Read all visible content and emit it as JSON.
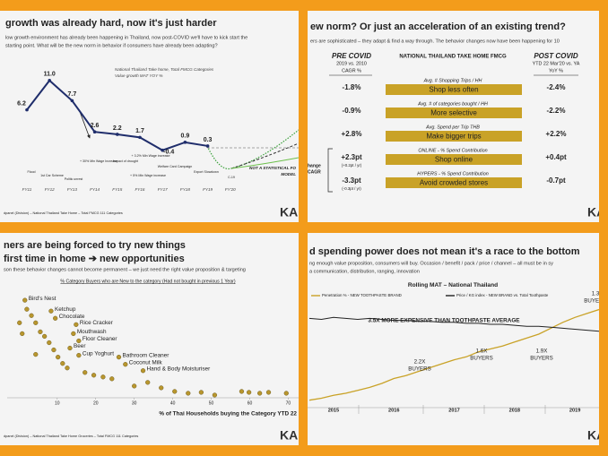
{
  "slides": [
    {
      "title": "growth was already hard, now it's just harder",
      "subtitle": [
        "low growth environment has already been happening in Thailand, now post-COVID we'll have to kick start the",
        "starting point. What will be the new norm in behavior if consumers have already been adapting?"
      ],
      "note": [
        "National Thailand Take home, Total FMCG Categories",
        "Value growth MAT YOY %"
      ],
      "annotations": [
        "Flood",
        "1st Car Scheme",
        "Politic unrest",
        "+ 30% Min Wage Increase",
        "Impact of drought",
        "+ 3.2% Min Wage increase",
        "Welfare Card Campaign",
        "+ 5% Min Wage increase",
        "Export Slowdown",
        "C-19"
      ],
      "forecast_note": [
        "NOT A STATISTICAL FO",
        "MODEL"
      ],
      "footer": "dpanel (Division) – National Thailand Take Home – Total FMCG 111 Categories",
      "logo": "KA"
    },
    {
      "title": "ew norm? Or just an acceleration of an existing trend?",
      "subtitle": "ers are sophisticated – they adapt & find a way through. The behavior changes now have been happening for 10",
      "table": {
        "headers": [
          [
            "PRE COVID",
            "2019 vs. 2010",
            "CAGR %"
          ],
          [
            "NATIONAL THAILAND TAKE HOME FMCG"
          ],
          [
            "POST COVID",
            "YTD 22 Mar'20 vs. YA",
            "YoY %"
          ]
        ],
        "rows": [
          {
            "pre": "-1.8%",
            "metric": "Avg. # Shopping Trips / HH",
            "action": "Shop less often",
            "post": "-2.4%"
          },
          {
            "pre": "-0.9%",
            "metric": "Avg. # of categories bought / HH",
            "action": "More selective",
            "post": "-2.2%"
          },
          {
            "pre": "+2.8%",
            "metric": "Avg. Spend per Trip THB",
            "action": "Make bigger trips",
            "post": "+2.2%"
          },
          {
            "pre": "+2.3pt",
            "pre_sub": "(+0.2pt / yr)",
            "metric": "ONLINE - % Spend Contribution",
            "action": "Shop online",
            "post": "+0.4pt"
          },
          {
            "pre": "-3.3pt",
            "pre_sub": "(-0.3pt / yr)",
            "metric": "HYPERS - % Spend Contribution",
            "action": "Avoid crowded stores",
            "post": "-0.7pt"
          }
        ]
      },
      "side_label": [
        "hange",
        "CAGR"
      ],
      "logo": "KA"
    },
    {
      "title": [
        "ners are being forced to try new things",
        "first time in home ➔ new opportunities"
      ],
      "subtitle": "son these behavior changes cannot become permanent – we just need the right value proposition & targeting",
      "footer": "dpanel (Division) – National Thailand Take Home Groceries – Total FMCG 111 Categories",
      "logo": "KA"
    },
    {
      "title": "d spending power does not mean it's a race to the bottom",
      "subtitle": [
        "ng enough value proposition, consumers will buy. Occasion / benefit / pack / price / channel – all must be in sy",
        "a communication, distribution, ranging, innovation"
      ],
      "logo": "KA"
    }
  ],
  "chart_data": [
    {
      "type": "line",
      "categories": [
        "FY11",
        "FY12",
        "FY13",
        "FY14",
        "FY15",
        "FY16",
        "FY17",
        "FY18",
        "FY19",
        "FY'20"
      ],
      "values": [
        6.2,
        11.0,
        7.7,
        2.6,
        2.2,
        1.7,
        -0.4,
        0.9,
        0.3,
        null
      ],
      "value_labels": [
        "6.2",
        "11.0",
        "7.7",
        "2.6",
        "2.2",
        "1.7",
        "-0.4",
        "0.9",
        "0.3",
        null
      ],
      "color": "#1f2d6b",
      "ylim": [
        -6,
        12
      ]
    },
    {
      "type": "scatter",
      "caption": "% Category Buyers who are New to the category (Had not bought in previous 1 Year)",
      "x_label": "% of Thai Households buying the Category YTD 22",
      "x": [
        1.6,
        8.4,
        9.5,
        14.9,
        14.2,
        15.6,
        13.3,
        15.6,
        26,
        27.7,
        32.3,
        2.1,
        3.3,
        4.4,
        5.6,
        6.7,
        7.9,
        9.1,
        10.2,
        11.4,
        12.6,
        17.2,
        19.5,
        21.9,
        24.2,
        30,
        33.5,
        37,
        40.5,
        44,
        47.4,
        50.9,
        57.9,
        59.8,
        62.6,
        64.9,
        69.5,
        0.2,
        0.9,
        4.4
      ],
      "values": [
        52.5,
        46.5,
        42.5,
        39,
        34,
        30,
        26,
        22,
        21,
        17,
        13.5,
        47.5,
        44,
        40,
        35,
        32.5,
        29,
        25,
        21,
        17.5,
        15,
        12.5,
        11,
        10,
        9,
        5,
        7,
        4,
        2,
        1,
        1.5,
        0,
        2,
        1.5,
        1,
        1.5,
        1,
        40,
        34,
        22.5
      ],
      "labels": [
        "Bird's Nest",
        "Ketchup",
        "Chocolate",
        "Rice Cracker",
        "Mouthwash",
        "Floor Cleaner",
        "Beer",
        "Cup Yoghurt",
        "Bathroom Cleaner",
        "Coconut Milk",
        "Hand & Body Moisturiser",
        null,
        null,
        null,
        null,
        null,
        null,
        null,
        null,
        null,
        null,
        null,
        null,
        null,
        null,
        null,
        null,
        null,
        null,
        null,
        null,
        null,
        null,
        null,
        null,
        null,
        null,
        null,
        null,
        null
      ],
      "color": "#b8962e",
      "xlim": [
        -3,
        72
      ],
      "ylim": [
        -1.5,
        60
      ],
      "xticks": [
        10,
        20,
        30,
        40,
        50,
        60,
        70
      ]
    },
    {
      "type": "line",
      "title": "Rolling MAT – National Thailand",
      "categories": [
        null,
        null,
        "2015",
        null,
        null,
        null,
        null,
        "2016",
        null,
        null,
        null,
        null,
        "2017",
        null,
        null,
        null,
        null,
        "2018",
        null,
        null,
        null,
        null,
        "2019",
        null,
        null
      ],
      "series": [
        {
          "name": "Penetration % - NEW TOOTHPASTE BRAND",
          "color": "#c9a227",
          "values": [
            3,
            5,
            8,
            10,
            13,
            16,
            20,
            25,
            28,
            32,
            36,
            40,
            44,
            47,
            52,
            55,
            58,
            62,
            66,
            70,
            76,
            82,
            87,
            91,
            95
          ]
        },
        {
          "name": "Price / KG index - NEW BRAND vs. Total Toothpaste",
          "color": "#222222",
          "axis": "y2",
          "values": [
            86,
            85,
            87,
            86,
            85,
            86,
            85,
            84,
            84,
            83,
            83,
            82,
            82,
            81,
            81,
            80,
            80,
            79,
            78,
            78,
            77,
            76,
            75,
            74,
            73
          ]
        }
      ],
      "annotations": [
        [
          "3.5X MORE EXPENSIVE THAN TOOTHPASTE AVERAGE"
        ],
        [
          "2.2X",
          "BUYERS"
        ],
        [
          "1.6X",
          "BUYERS"
        ],
        [
          "1.9X",
          "BUYERS"
        ],
        [
          "1.3",
          "BUYERS"
        ]
      ],
      "ylim": [
        0,
        100
      ],
      "y2lim": [
        0,
        100
      ]
    }
  ]
}
